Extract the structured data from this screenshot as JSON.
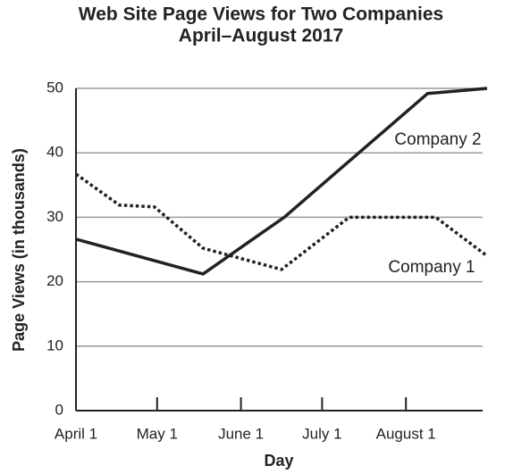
{
  "chart_data": {
    "type": "line",
    "title": "Web Site Page Views for Two Companies",
    "subtitle": "April–August 2017",
    "x_label": "Day",
    "y_label": "Page Views (in thousands)",
    "xlim": [
      "2017-04-01",
      "2017-08-31"
    ],
    "xticks": [
      {
        "value": "2017-04-01",
        "label": "April 1"
      },
      {
        "value": "2017-05-01",
        "label": "May 1"
      },
      {
        "value": "2017-06-01",
        "label": "June 1"
      },
      {
        "value": "2017-07-01",
        "label": "July 1"
      },
      {
        "value": "2017-08-01",
        "label": "August 1"
      }
    ],
    "ylim": [
      0,
      50
    ],
    "yticks": [
      0,
      10,
      20,
      30,
      40,
      50
    ],
    "grid": true,
    "series": [
      {
        "name": "Company 2",
        "color": "#222222",
        "style": "solid",
        "x": [
          "2017-04-01",
          "2017-05-18",
          "2017-06-17",
          "2017-08-09",
          "2017-08-31"
        ],
        "values": [
          26.6,
          21.2,
          30,
          49.2,
          50
        ]
      },
      {
        "name": "Company 1",
        "color": "#222222",
        "style": "dotted",
        "x": [
          "2017-04-01",
          "2017-04-17",
          "2017-04-30",
          "2017-05-18",
          "2017-06-16",
          "2017-07-11",
          "2017-08-12",
          "2017-08-31"
        ],
        "values": [
          36.7,
          31.9,
          31.6,
          25.2,
          21.9,
          30,
          30,
          24
        ]
      }
    ]
  }
}
